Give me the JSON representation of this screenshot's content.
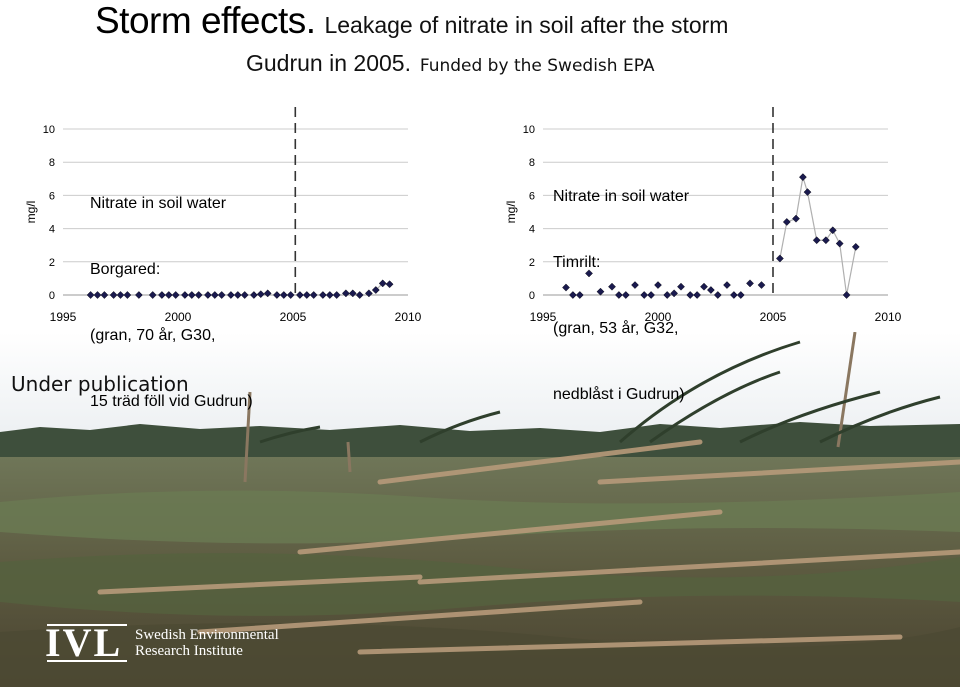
{
  "title": {
    "main": "Storm effects.",
    "subtitle_a": "Leakage of nitrate in soil after the storm",
    "subtitle_b": "Gudrun in 2005.",
    "funding": "Funded by the Swedish EPA"
  },
  "status_text": "Under publication",
  "logo": {
    "mark": "IVL",
    "name_line1": "Swedish Environmental",
    "name_line2": "Research Institute"
  },
  "colors": {
    "marker": "#1a1a4e",
    "line": "#b0b0b0",
    "storm_line": "#333333",
    "grid": "#cccccc"
  },
  "chart_data": [
    {
      "type": "scatter",
      "ylabel": "mg/l",
      "xlim": [
        1995,
        2010
      ],
      "ylim": [
        0,
        10
      ],
      "x_ticks": [
        1995,
        2000,
        2005,
        2010
      ],
      "y_ticks": [
        0,
        2,
        4,
        6,
        8,
        10
      ],
      "grid": true,
      "connected_from": 2008.6,
      "storm_year": 2005.1,
      "annotation": [
        "Nitrate in soil water",
        "Borgared:",
        "(gran, 70 år, G30,",
        "15 träd föll vid Gudrun)"
      ],
      "points": [
        {
          "x": 1996.2,
          "y": 0.0
        },
        {
          "x": 1996.5,
          "y": 0.0
        },
        {
          "x": 1996.8,
          "y": 0.0
        },
        {
          "x": 1997.2,
          "y": 0.0
        },
        {
          "x": 1997.5,
          "y": 0.0
        },
        {
          "x": 1997.8,
          "y": 0.0
        },
        {
          "x": 1998.3,
          "y": 0.0
        },
        {
          "x": 1998.9,
          "y": 0.0
        },
        {
          "x": 1999.3,
          "y": 0.0
        },
        {
          "x": 1999.6,
          "y": 0.0
        },
        {
          "x": 1999.9,
          "y": 0.0
        },
        {
          "x": 2000.3,
          "y": 0.0
        },
        {
          "x": 2000.6,
          "y": 0.0
        },
        {
          "x": 2000.9,
          "y": 0.0
        },
        {
          "x": 2001.3,
          "y": 0.0
        },
        {
          "x": 2001.6,
          "y": 0.0
        },
        {
          "x": 2001.9,
          "y": 0.0
        },
        {
          "x": 2002.3,
          "y": 0.0
        },
        {
          "x": 2002.6,
          "y": 0.0
        },
        {
          "x": 2002.9,
          "y": 0.0
        },
        {
          "x": 2003.3,
          "y": 0.0
        },
        {
          "x": 2003.6,
          "y": 0.05
        },
        {
          "x": 2003.9,
          "y": 0.1
        },
        {
          "x": 2004.3,
          "y": 0.0
        },
        {
          "x": 2004.6,
          "y": 0.0
        },
        {
          "x": 2004.9,
          "y": 0.0
        },
        {
          "x": 2005.3,
          "y": 0.0
        },
        {
          "x": 2005.6,
          "y": 0.0
        },
        {
          "x": 2005.9,
          "y": 0.0
        },
        {
          "x": 2006.3,
          "y": 0.0
        },
        {
          "x": 2006.6,
          "y": 0.0
        },
        {
          "x": 2006.9,
          "y": 0.0
        },
        {
          "x": 2007.3,
          "y": 0.1
        },
        {
          "x": 2007.6,
          "y": 0.1
        },
        {
          "x": 2007.9,
          "y": 0.0
        },
        {
          "x": 2008.3,
          "y": 0.1
        },
        {
          "x": 2008.6,
          "y": 0.3
        },
        {
          "x": 2008.9,
          "y": 0.7
        },
        {
          "x": 2009.2,
          "y": 0.65
        }
      ]
    },
    {
      "type": "line",
      "ylabel": "mg/l",
      "xlim": [
        1995,
        2010
      ],
      "ylim": [
        0,
        10
      ],
      "x_ticks": [
        1995,
        2000,
        2005,
        2010
      ],
      "y_ticks": [
        0,
        2,
        4,
        6,
        8,
        10
      ],
      "grid": true,
      "connected_from": 2005.3,
      "storm_year": 2005.0,
      "annotation": [
        "Nitrate in soil water",
        "Timrilt:",
        "(gran, 53 år, G32,",
        "nedblåst i Gudrun)"
      ],
      "points": [
        {
          "x": 1996.0,
          "y": 0.45
        },
        {
          "x": 1996.3,
          "y": 0.0
        },
        {
          "x": 1996.6,
          "y": 0.0
        },
        {
          "x": 1997.0,
          "y": 1.3
        },
        {
          "x": 1997.5,
          "y": 0.2
        },
        {
          "x": 1998.0,
          "y": 0.5
        },
        {
          "x": 1998.3,
          "y": 0.0
        },
        {
          "x": 1998.6,
          "y": 0.0
        },
        {
          "x": 1999.0,
          "y": 0.6
        },
        {
          "x": 1999.4,
          "y": 0.0
        },
        {
          "x": 1999.7,
          "y": 0.0
        },
        {
          "x": 2000.0,
          "y": 0.6
        },
        {
          "x": 2000.4,
          "y": 0.0
        },
        {
          "x": 2000.7,
          "y": 0.1
        },
        {
          "x": 2001.0,
          "y": 0.5
        },
        {
          "x": 2001.4,
          "y": 0.0
        },
        {
          "x": 2001.7,
          "y": 0.0
        },
        {
          "x": 2002.0,
          "y": 0.5
        },
        {
          "x": 2002.3,
          "y": 0.3
        },
        {
          "x": 2002.6,
          "y": 0.0
        },
        {
          "x": 2003.0,
          "y": 0.6
        },
        {
          "x": 2003.3,
          "y": 0.0
        },
        {
          "x": 2003.6,
          "y": 0.0
        },
        {
          "x": 2004.0,
          "y": 0.7
        },
        {
          "x": 2004.5,
          "y": 0.6
        },
        {
          "x": 2005.3,
          "y": 2.2
        },
        {
          "x": 2005.6,
          "y": 4.4
        },
        {
          "x": 2006.0,
          "y": 4.6
        },
        {
          "x": 2006.3,
          "y": 7.1
        },
        {
          "x": 2006.5,
          "y": 6.2
        },
        {
          "x": 2006.9,
          "y": 3.3
        },
        {
          "x": 2007.3,
          "y": 3.3
        },
        {
          "x": 2007.6,
          "y": 3.9
        },
        {
          "x": 2007.9,
          "y": 3.1
        },
        {
          "x": 2008.2,
          "y": 0.0
        },
        {
          "x": 2008.6,
          "y": 2.9
        }
      ]
    }
  ]
}
